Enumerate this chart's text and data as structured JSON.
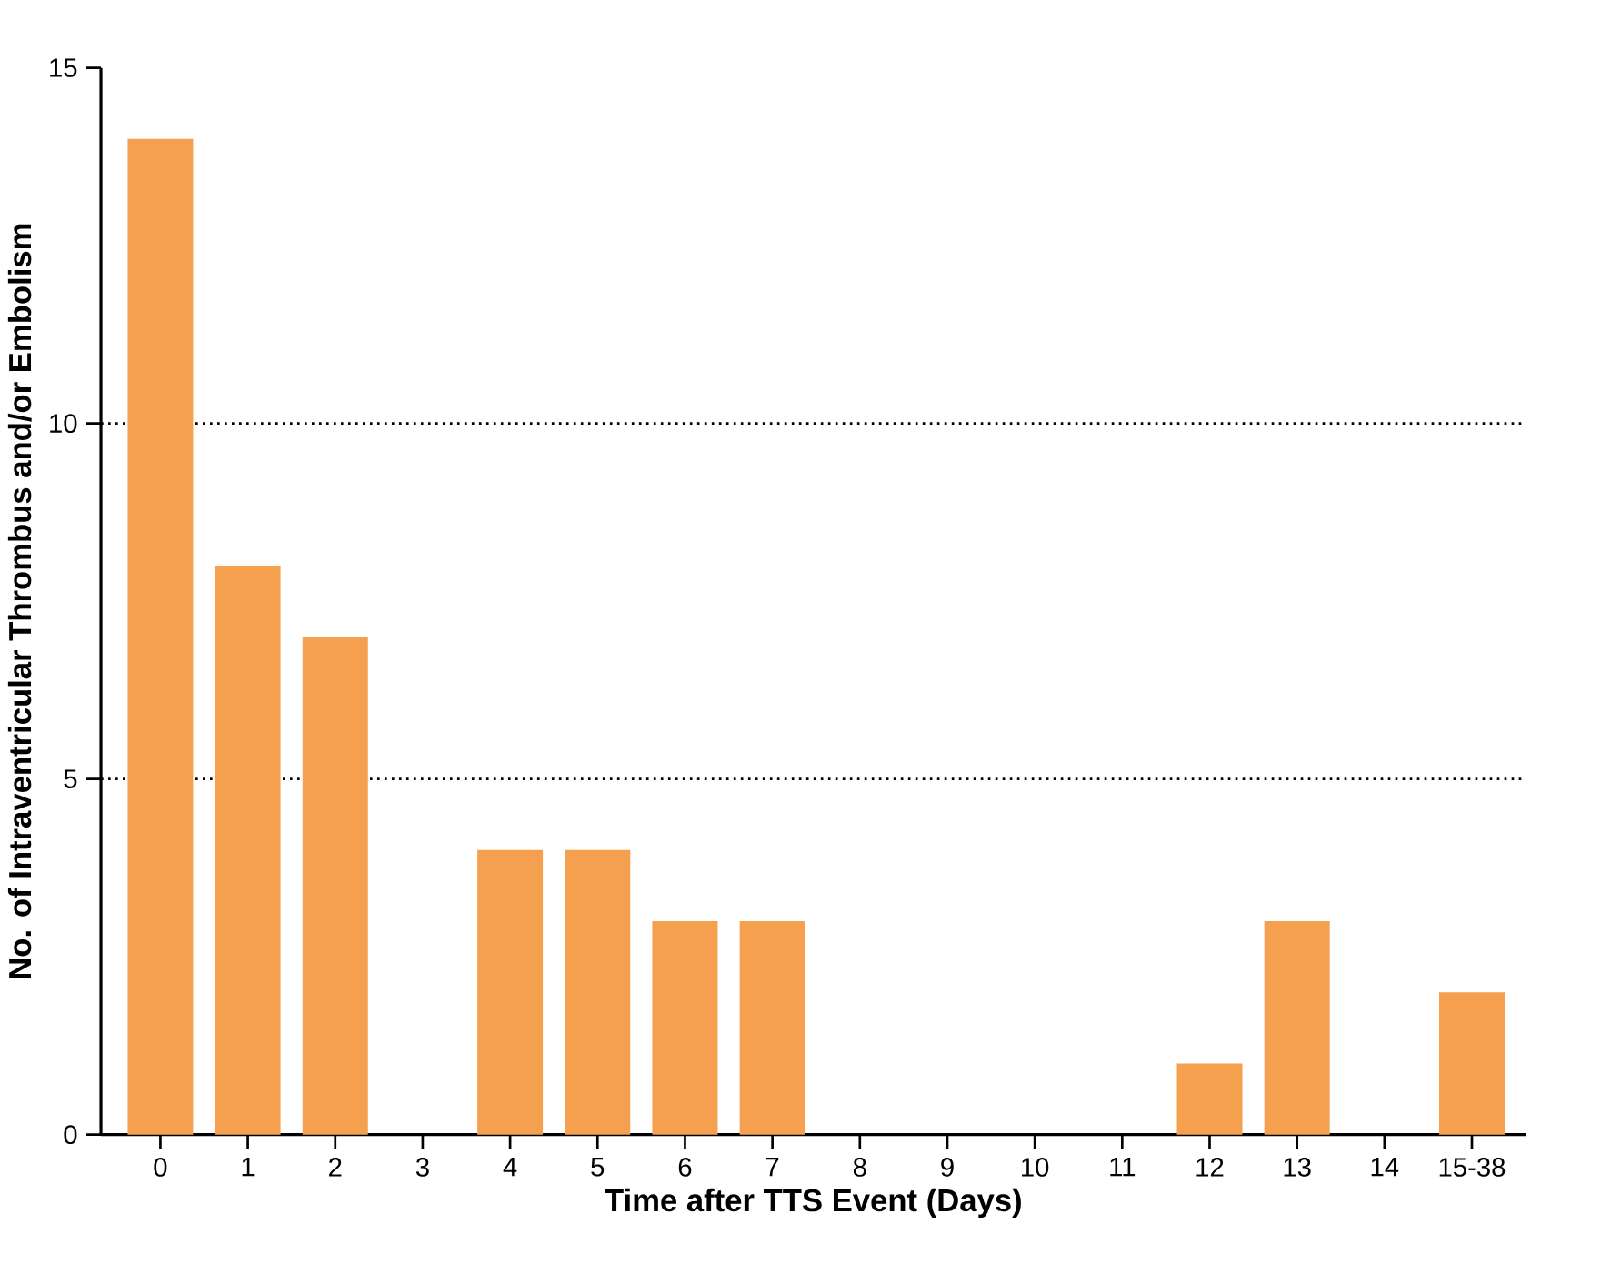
{
  "chart_data": {
    "type": "bar",
    "xlabel": "Time after TTS Event (Days)",
    "ylabel": "No. of Intraventricular Thrombus and/or Embolism",
    "categories": [
      "0",
      "1",
      "2",
      "3",
      "4",
      "5",
      "6",
      "7",
      "8",
      "9",
      "10",
      "11",
      "12",
      "13",
      "14",
      "15-38"
    ],
    "values": [
      14,
      8,
      7,
      0,
      4,
      4,
      3,
      3,
      0,
      0,
      0,
      0,
      1,
      3,
      0,
      2
    ],
    "color": "#f5a04f",
    "ylim": [
      0,
      15
    ],
    "yticks": [
      0,
      5,
      10,
      15
    ],
    "grid": "y",
    "line_style": "dotted"
  }
}
